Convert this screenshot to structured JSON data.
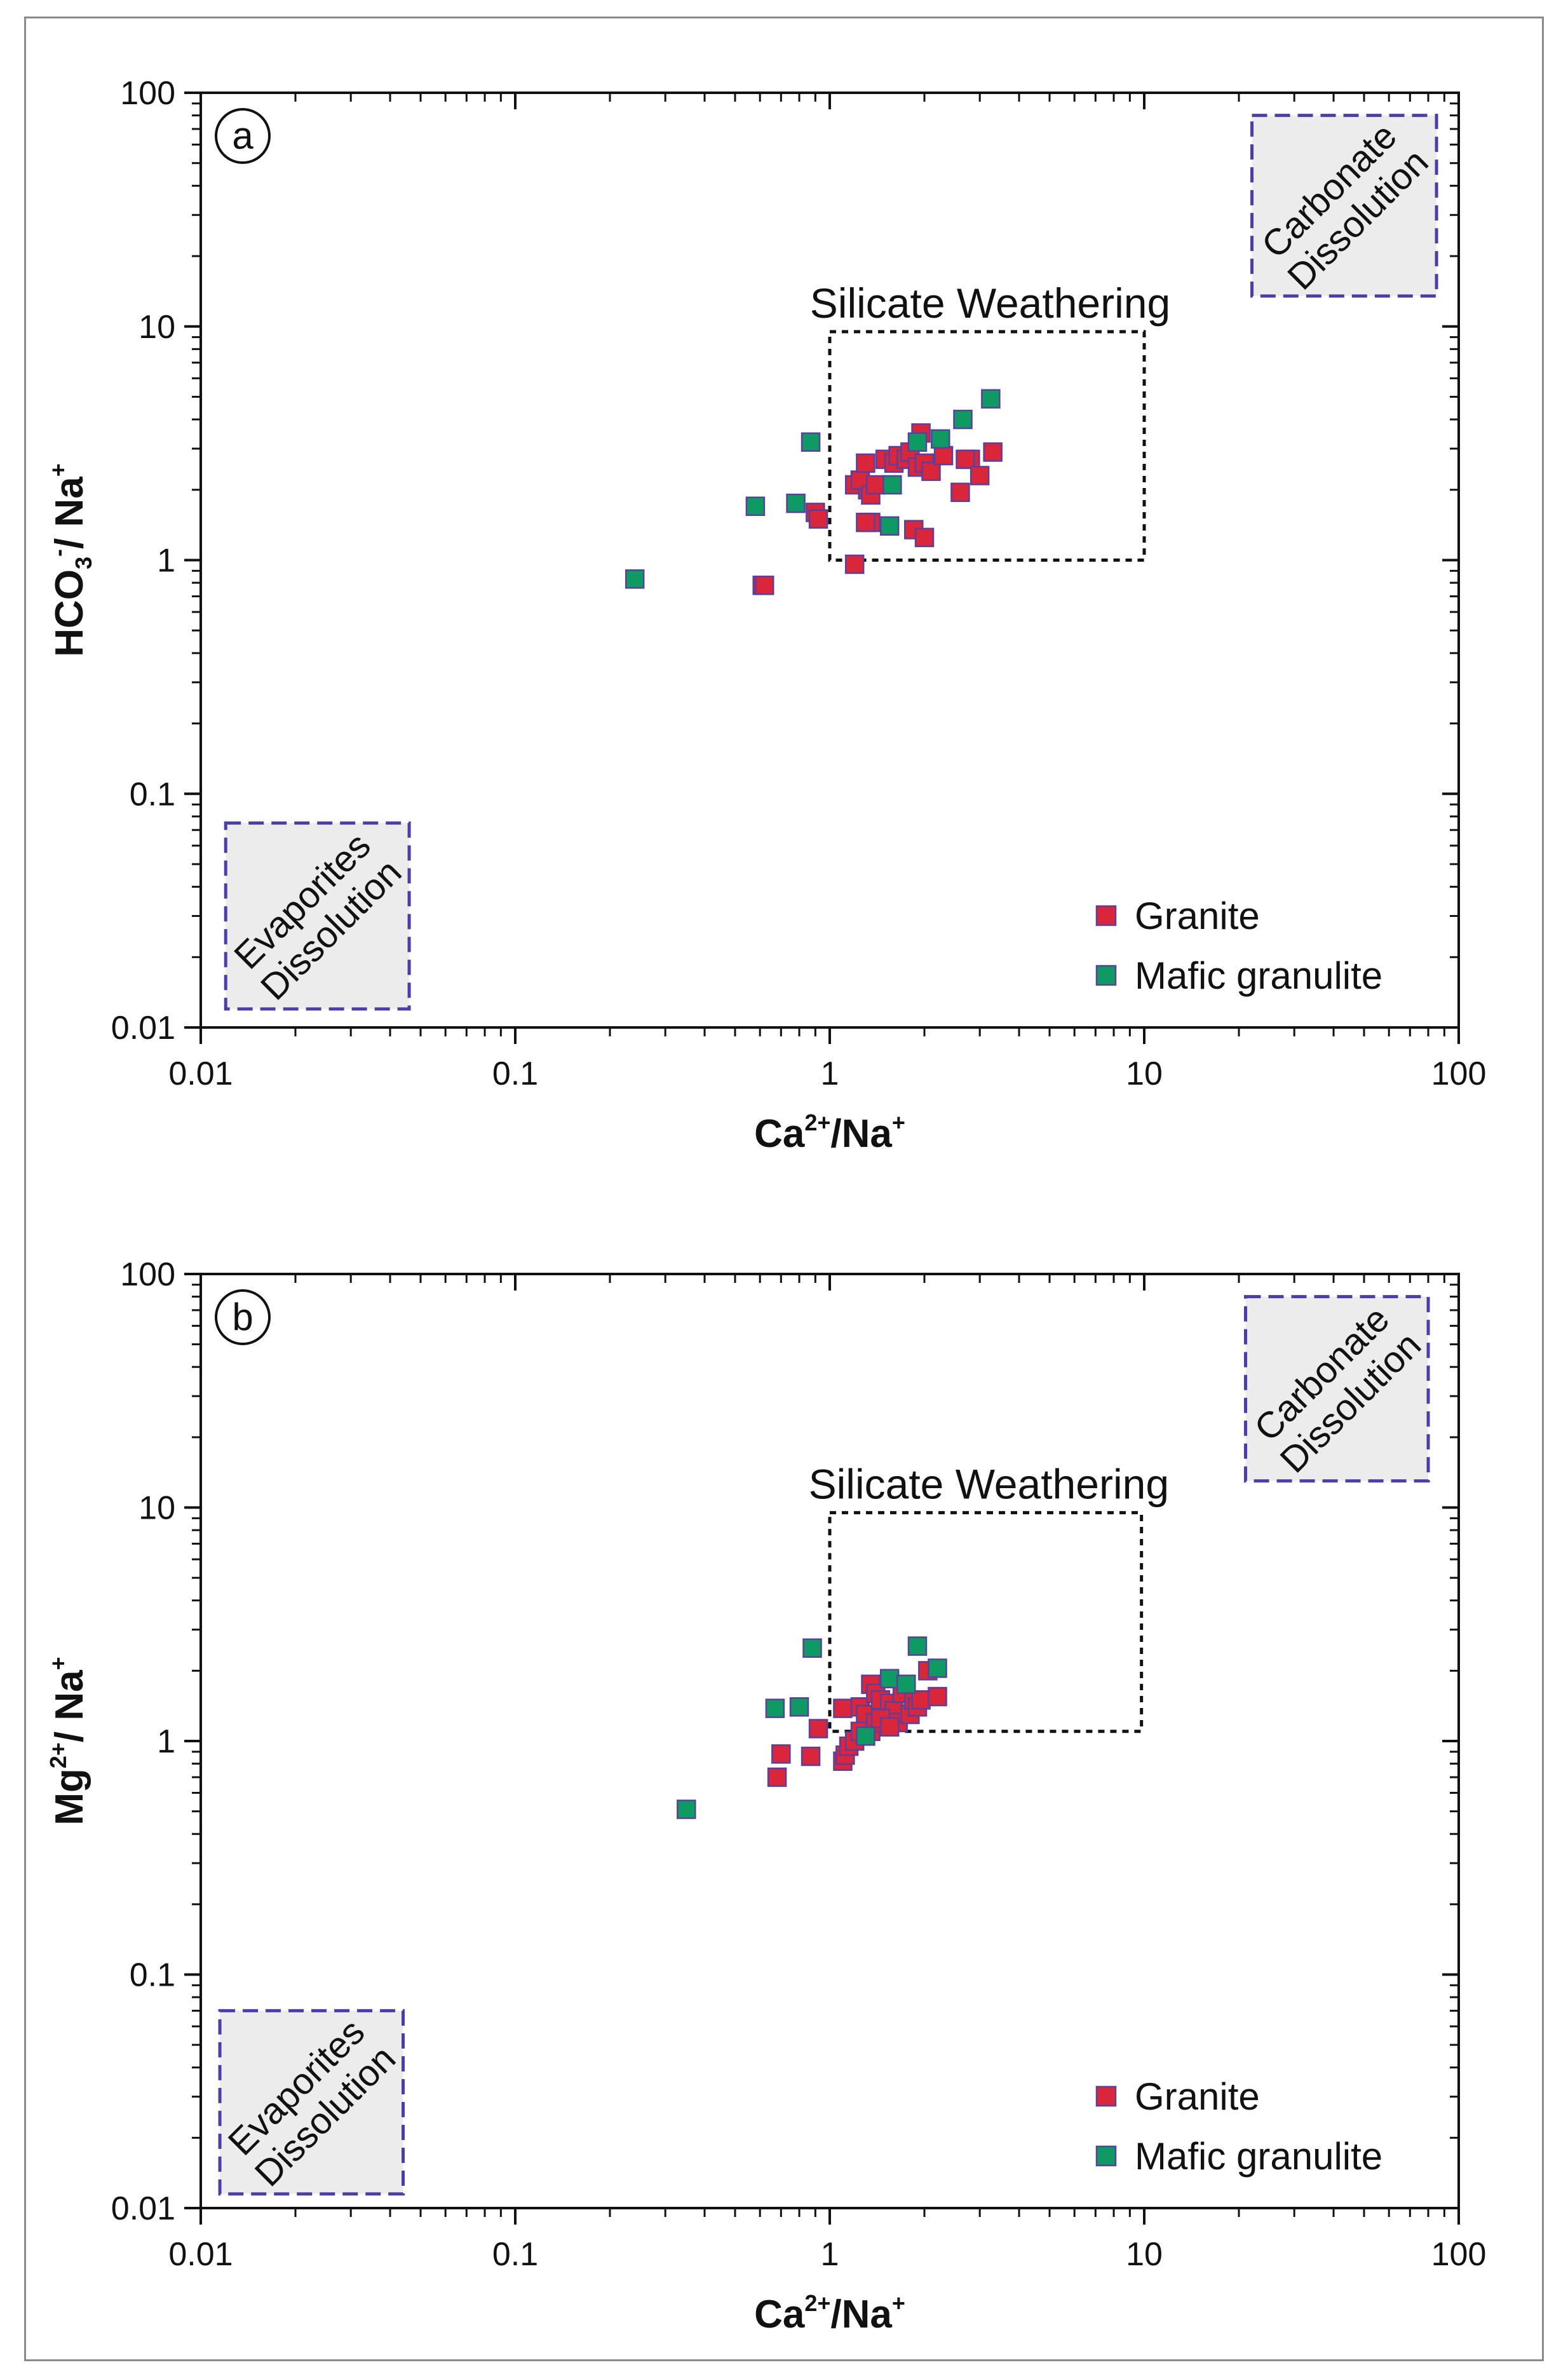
{
  "chart_data": [
    {
      "type": "scatter",
      "panel_label": "a",
      "xlabel": "Ca²⁺/Na⁺",
      "ylabel": "HCO₃⁻/ Na⁺",
      "xlabel_parts": {
        "main": "Ca",
        "sup": "2+",
        "tail": "/Na",
        "sup2": "+"
      },
      "ylabel_parts": {
        "main": "HCO",
        "sub": "3",
        "sup": "-",
        "tail": "/ Na",
        "sup2": "+"
      },
      "xscale": "log",
      "yscale": "log",
      "xlim": [
        0.01,
        100
      ],
      "ylim": [
        0.01,
        100
      ],
      "xticks": [
        "0.01",
        "0.1",
        "1",
        "10",
        "100"
      ],
      "yticks": [
        "0.01",
        "0.1",
        "1",
        "10",
        "100"
      ],
      "legend_position": "bottom-right",
      "regions": [
        {
          "name": "Carbonate Dissolution",
          "lines": [
            "Carbonate",
            "Dissolution"
          ],
          "x": [
            22,
            85
          ],
          "y": [
            13.5,
            80
          ],
          "style": "shaded-dashed"
        },
        {
          "name": "Evaporites Dissolution",
          "lines": [
            "Evaporites",
            "Dissolution"
          ],
          "x": [
            0.012,
            0.046
          ],
          "y": [
            0.012,
            0.075
          ],
          "style": "shaded-dashed"
        },
        {
          "name": "Silicate Weathering",
          "lines": [
            "Silicate Weathering"
          ],
          "x": [
            1.0,
            10.0
          ],
          "y": [
            1.0,
            9.5
          ],
          "style": "dotted"
        }
      ],
      "series": [
        {
          "name": "Granite",
          "color": "#d9263a",
          "x": [
            0.61,
            0.62,
            1.2,
            0.9,
            0.92,
            1.2,
            1.32,
            1.25,
            1.3,
            1.35,
            1.4,
            1.35,
            1.5,
            1.6,
            1.65,
            1.75,
            1.8,
            1.95,
            1.9,
            2.0,
            2.1,
            2.3,
            2.6,
            2.8,
            2.7,
            3.0,
            3.3,
            1.85,
            2.0,
            1.3
          ],
          "y": [
            0.78,
            0.78,
            0.96,
            1.6,
            1.5,
            2.1,
            2.0,
            2.2,
            2.6,
            1.9,
            2.1,
            1.45,
            2.7,
            2.6,
            2.8,
            2.7,
            2.9,
            3.5,
            2.5,
            2.6,
            2.4,
            2.8,
            1.95,
            2.7,
            2.7,
            2.3,
            2.9,
            1.35,
            1.25,
            1.45
          ]
        },
        {
          "name": "Mafic granulite",
          "color": "#0f9a63",
          "x": [
            0.24,
            0.58,
            0.78,
            0.87,
            1.55,
            1.58,
            1.9,
            2.25,
            2.65,
            3.25
          ],
          "y": [
            0.83,
            1.7,
            1.75,
            3.2,
            1.4,
            2.1,
            3.2,
            3.3,
            4.0,
            4.9
          ]
        }
      ]
    },
    {
      "type": "scatter",
      "panel_label": "b",
      "xlabel": "Ca²⁺/Na⁺",
      "ylabel": "Mg²⁺/ Na⁺",
      "xlabel_parts": {
        "main": "Ca",
        "sup": "2+",
        "tail": "/Na",
        "sup2": "+"
      },
      "ylabel_parts": {
        "main": "Mg",
        "sup": "2+",
        "tail": "/ Na",
        "sup2": "+"
      },
      "xscale": "log",
      "yscale": "log",
      "xlim": [
        0.01,
        100
      ],
      "ylim": [
        0.01,
        100
      ],
      "xticks": [
        "0.01",
        "0.1",
        "1",
        "10",
        "100"
      ],
      "yticks": [
        "0.01",
        "0.1",
        "1",
        "10",
        "100"
      ],
      "legend_position": "bottom-right",
      "regions": [
        {
          "name": "Carbonate Dissolution",
          "lines": [
            "Carbonate",
            "Dissolution"
          ],
          "x": [
            21,
            80
          ],
          "y": [
            13,
            80
          ],
          "style": "shaded-dashed"
        },
        {
          "name": "Evaporites Dissolution",
          "lines": [
            "Evaporites",
            "Dissolution"
          ],
          "x": [
            0.0115,
            0.044
          ],
          "y": [
            0.0115,
            0.07
          ],
          "style": "shaded-dashed"
        },
        {
          "name": "Silicate Weathering",
          "lines": [
            "Silicate Weathering"
          ],
          "x": [
            1.0,
            9.8
          ],
          "y": [
            1.1,
            9.5
          ],
          "style": "dotted"
        }
      ],
      "series": [
        {
          "name": "Granite",
          "color": "#d9263a",
          "x": [
            0.68,
            0.7,
            0.87,
            0.92,
            1.1,
            1.12,
            1.15,
            1.2,
            1.1,
            1.25,
            1.3,
            1.35,
            1.4,
            1.45,
            1.5,
            1.35,
            1.55,
            1.6,
            1.65,
            1.7,
            1.8,
            1.85,
            1.9,
            1.95,
            2.05,
            2.2,
            1.25,
            1.4,
            1.45,
            1.55
          ],
          "y": [
            0.7,
            0.88,
            0.86,
            1.13,
            0.82,
            0.87,
            0.95,
            1.0,
            1.38,
            1.4,
            1.3,
            1.75,
            1.6,
            1.5,
            1.2,
            1.1,
            1.45,
            1.35,
            1.2,
            1.6,
            1.3,
            1.5,
            1.4,
            1.5,
            2.0,
            1.55,
            1.1,
            1.2,
            1.25,
            1.15
          ]
        },
        {
          "name": "Mafic granulite",
          "color": "#0f9a63",
          "x": [
            0.35,
            0.67,
            0.8,
            0.88,
            1.3,
            1.55,
            1.75,
            1.9,
            2.2
          ],
          "y": [
            0.51,
            1.38,
            1.4,
            2.5,
            1.05,
            1.85,
            1.75,
            2.55,
            2.05
          ]
        }
      ]
    }
  ]
}
